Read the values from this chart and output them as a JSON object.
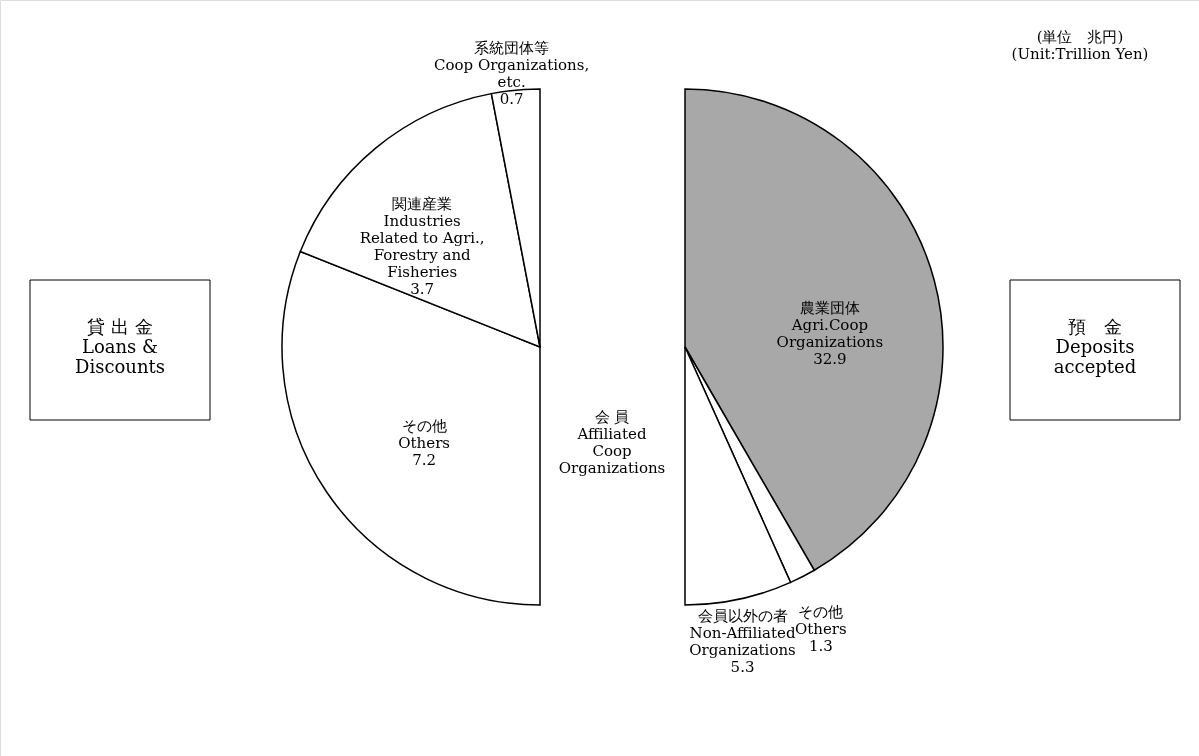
{
  "chart_data": [
    {
      "type": "pie",
      "title": "貸 出 金\nLoans &\nDiscounts",
      "categories": [
        "その他\nOthers",
        "関連産業\nIndustries\nRelated to Agri.,\nForestry and\nFisheries",
        "系統団体等\nCoop Organizations,\netc."
      ],
      "values": [
        7.2,
        3.7,
        0.7
      ],
      "colors": [
        "#ffffff",
        "#ffffff",
        "#ffffff"
      ],
      "data_labels": true,
      "annotations": [
        "会 員\nAffiliated\nCoop\nOrganizations"
      ]
    },
    {
      "type": "pie",
      "title": "預　金\nDeposits\naccepted",
      "categories": [
        "農業団体\nAgri.Coop\nOrganizations",
        "その他\nOthers",
        "会員以外の者\nNon-Affiliated\nOrganizations"
      ],
      "values": [
        32.9,
        1.3,
        5.3
      ],
      "colors": [
        "#a8a8a8",
        "#ffffff",
        "#ffffff"
      ],
      "data_labels": true,
      "annotations": [
        "(単位　兆円)\n(Unit:Trillion Yen)"
      ]
    }
  ]
}
